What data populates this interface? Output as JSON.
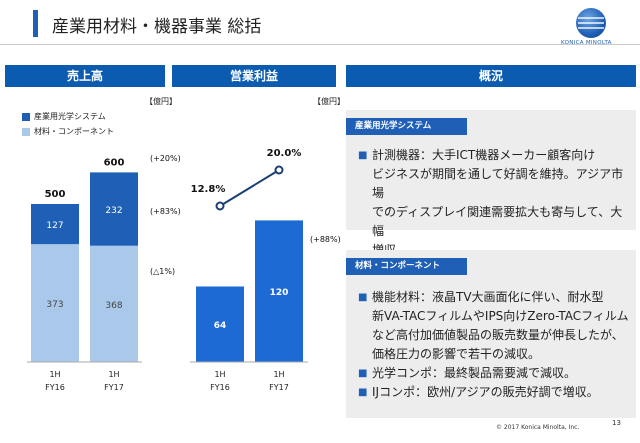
{
  "page": {
    "title": "産業用材料・機器事業 総括",
    "brand": "KONICA MINOLTA",
    "copyright": "© 2017 Konica Minolta, Inc.",
    "page_number": "13"
  },
  "colors": {
    "header_blue": "#0b5cb0",
    "bar_dark": "#1f5fb5",
    "bar_light": "#a9c8ea",
    "profit_bar": "#1e6ad4",
    "line": "#1a3f73",
    "tag_blue": "#1f5fb5"
  },
  "headers": {
    "sales": "売上高",
    "profit": "営業利益",
    "overview": "概況"
  },
  "chart_data": [
    {
      "type": "bar",
      "stacked": true,
      "unit": "【億円】",
      "categories": [
        [
          "1H",
          "FY16"
        ],
        [
          "1H",
          "FY17"
        ]
      ],
      "series": [
        {
          "name": "材料・コンポーネント",
          "values": [
            373,
            368
          ]
        },
        {
          "name": "産業用光学システム",
          "values": [
            127,
            232
          ]
        }
      ],
      "totals": [
        500,
        600
      ],
      "change_labels": {
        "total": "(+20%)",
        "optical": "(+83%)",
        "materials": "(△1%)"
      }
    },
    {
      "type": "bar",
      "unit": "【億円】",
      "categories": [
        [
          "1H",
          "FY16"
        ],
        [
          "1H",
          "FY17"
        ]
      ],
      "values": [
        64,
        120
      ],
      "change_label": "(+88%)",
      "margin_line": {
        "values": [
          12.8,
          20.0
        ],
        "labels": [
          "12.8%",
          "20.0%"
        ]
      }
    }
  ],
  "overview": {
    "section1": {
      "tag": "産業用光学システム",
      "lines": [
        "計測機器：大手ICT機器メーカー顧客向け",
        "ビジネスが期間を通して好調を維持。アジア市場",
        "でのディスプレイ関連需要拡大も寄与して、大幅",
        "増収。"
      ]
    },
    "section2": {
      "tag": "材料・コンポーネント",
      "bullets": [
        {
          "lines": [
            "機能材料：液晶TV大画面化に伴い、耐水型",
            "新VA-TACフィルムやIPS向けZero-TACフィルム",
            "など高付加価値製品の販売数量が伸長したが、",
            "価格圧力の影響で若干の減収。"
          ]
        },
        {
          "lines": [
            "光学コンポ：最終製品需要減で減収。"
          ]
        },
        {
          "lines": [
            "IJコンポ：欧州/アジアの販売好調で増収。"
          ]
        }
      ]
    }
  }
}
